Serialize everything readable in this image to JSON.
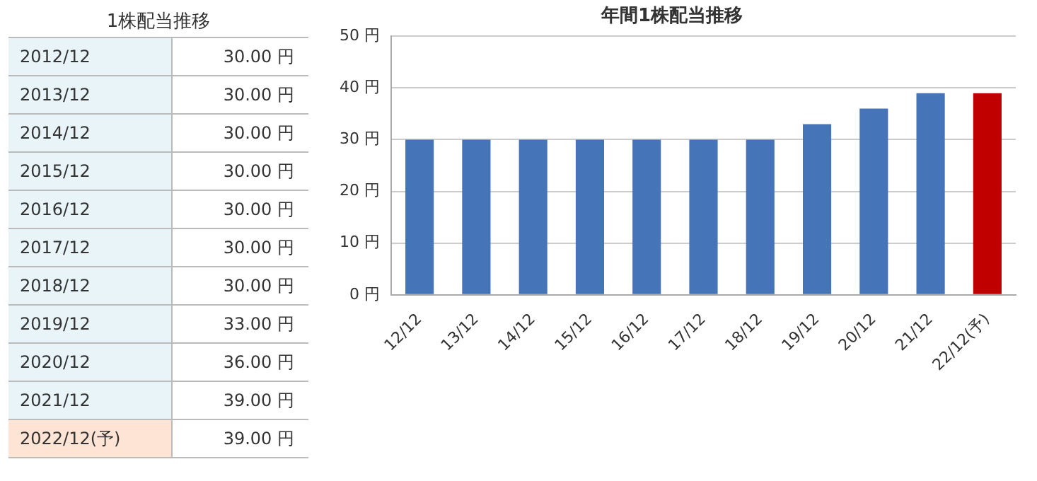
{
  "chart_data": {
    "type": "bar",
    "title": "年間1株配当推移",
    "categories": [
      "12/12",
      "13/12",
      "14/12",
      "15/12",
      "16/12",
      "17/12",
      "18/12",
      "19/12",
      "20/12",
      "21/12",
      "22/12(予)"
    ],
    "values": [
      30,
      30,
      30,
      30,
      30,
      30,
      30,
      33,
      36,
      39,
      39
    ],
    "colors": [
      "#4674b8",
      "#4674b8",
      "#4674b8",
      "#4674b8",
      "#4674b8",
      "#4674b8",
      "#4674b8",
      "#4674b8",
      "#4674b8",
      "#4674b8",
      "#c00000"
    ],
    "ylim": [
      0,
      50
    ],
    "yticks": [
      {
        "value": 0,
        "label": "0 円"
      },
      {
        "value": 10,
        "label": "10 円"
      },
      {
        "value": 20,
        "label": "20 円"
      },
      {
        "value": 30,
        "label": "30 円"
      },
      {
        "value": 40,
        "label": "40 円"
      },
      {
        "value": 50,
        "label": "50 円"
      }
    ],
    "annotations": [
      "1株配当推移",
      "2012/12",
      "30.00 円",
      "2013/12",
      "30.00 円",
      "2014/12",
      "30.00 円",
      "2015/12",
      "30.00 円",
      "2016/12",
      "30.00 円",
      "2017/12",
      "30.00 円",
      "2018/12",
      "30.00 円",
      "2019/12",
      "33.00 円",
      "2020/12",
      "36.00 円",
      "2021/12",
      "39.00 円",
      "2022/12(予)",
      "39.00 円"
    ],
    "grid": "y",
    "legend": false
  }
}
